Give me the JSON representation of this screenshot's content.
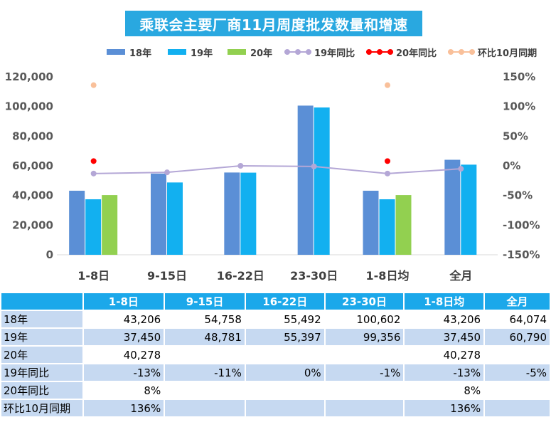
{
  "chart_data": {
    "type": "bar",
    "title": "乘联会主要厂商11月周度批发数量和增速",
    "categories": [
      "1-8日",
      "9-15日",
      "16-22日",
      "23-30日",
      "1-8日均",
      "全月"
    ],
    "series": [
      {
        "name": "18年",
        "kind": "bar",
        "color": "#5b8fd6",
        "values": [
          43206,
          54758,
          55492,
          100602,
          43206,
          64074
        ]
      },
      {
        "name": "19年",
        "kind": "bar",
        "color": "#12b0f0",
        "values": [
          37450,
          48781,
          55397,
          99356,
          37450,
          60790
        ]
      },
      {
        "name": "20年",
        "kind": "bar",
        "color": "#92d050",
        "values": [
          40278,
          null,
          null,
          null,
          40278,
          null
        ]
      },
      {
        "name": "19年同比",
        "kind": "line",
        "axis": "right",
        "color": "#b4a7d6",
        "values": [
          -13,
          -11,
          0,
          -1,
          -13,
          -5
        ]
      },
      {
        "name": "20年同比",
        "kind": "point",
        "axis": "right",
        "color": "#ff0000",
        "values": [
          8,
          null,
          null,
          null,
          8,
          null
        ]
      },
      {
        "name": "环比10月同期",
        "kind": "point",
        "axis": "right",
        "color": "#f9c09a",
        "values": [
          136,
          null,
          null,
          null,
          136,
          null
        ]
      }
    ],
    "y_left": {
      "min": 0,
      "max": 120000,
      "ticks": [
        0,
        20000,
        40000,
        60000,
        80000,
        100000,
        120000
      ],
      "tick_labels": [
        "0",
        "20,000",
        "40,000",
        "60,000",
        "80,000",
        "100,000",
        "120,000"
      ]
    },
    "y_right": {
      "min": -150,
      "max": 150,
      "ticks": [
        -150,
        -100,
        -50,
        0,
        50,
        100,
        150
      ],
      "tick_labels": [
        "-150%",
        "-100%",
        "-50%",
        "0%",
        "50%",
        "100%",
        "150%"
      ]
    },
    "grid": false,
    "legend_position": "top"
  },
  "table": {
    "headers": [
      "1-8日",
      "9-15日",
      "16-22日",
      "23-30日",
      "1-8日均",
      "全月"
    ],
    "rows": [
      {
        "label": "18年",
        "cells": [
          "43,206",
          "54,758",
          "55,492",
          "100,602",
          "43,206",
          "64,074"
        ]
      },
      {
        "label": "19年",
        "cells": [
          "37,450",
          "48,781",
          "55,397",
          "99,356",
          "37,450",
          "60,790"
        ]
      },
      {
        "label": "20年",
        "cells": [
          "40,278",
          "",
          "",
          "",
          "40,278",
          ""
        ]
      },
      {
        "label": "19年同比",
        "cells": [
          "-13%",
          "-11%",
          "0%",
          "-1%",
          "-13%",
          "-5%"
        ]
      },
      {
        "label": "20年同比",
        "cells": [
          "8%",
          "",
          "",
          "",
          "8%",
          ""
        ]
      },
      {
        "label": "环比10月同期",
        "cells": [
          "136%",
          "",
          "",
          "",
          "136%",
          ""
        ]
      }
    ]
  }
}
